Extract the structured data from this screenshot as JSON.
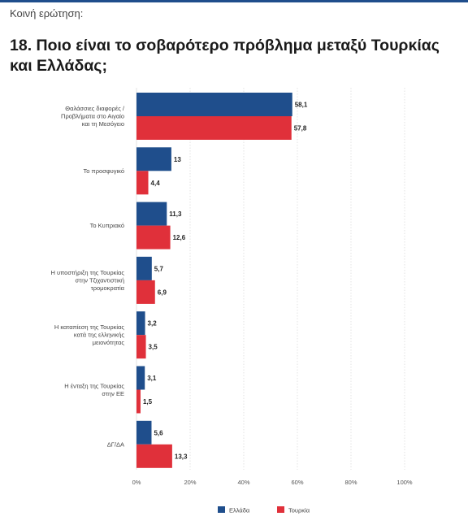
{
  "header": {
    "kicker": "Κοινή ερώτηση:",
    "title": "18. Ποιο είναι το σοβαρότερο πρόβλημα μεταξύ Τουρκίας και Ελλάδας;"
  },
  "colors": {
    "accent": "#1f4e8c",
    "greece": "#1f4e8c",
    "turkey": "#e0303a",
    "grid": "#d0d0d0"
  },
  "chart_data": {
    "type": "bar",
    "orientation": "horizontal",
    "title": "18. Ποιο είναι το σοβαρότερο πρόβλημα μεταξύ Τουρκίας και Ελλάδας;",
    "categories": [
      [
        "Θαλάσσιες διαφορές /",
        "Προβλήματα στο Αιγαίο",
        "και τη Μεσόγειο"
      ],
      [
        "Το προσφυγικό"
      ],
      [
        "Το Κυπριακό"
      ],
      [
        "Η υποστήριξη της Τουρκίας",
        "στην Τζιχαντιστική",
        "τρομοκρατία"
      ],
      [
        "Η καταπίεση της Τουρκίας",
        "κατά της ελληνικής",
        "μειονότητας"
      ],
      [
        "Η ένταξη της Τουρκίας",
        "στην ΕΕ"
      ],
      [
        "ΔΓ/ΔΑ"
      ]
    ],
    "series": [
      {
        "name": "Ελλάδα",
        "color": "#1f4e8c",
        "values": [
          58.1,
          13,
          11.3,
          5.7,
          3.2,
          3.1,
          5.6
        ],
        "labels": [
          "58,1",
          "13",
          "11,3",
          "5,7",
          "3,2",
          "3,1",
          "5,6"
        ]
      },
      {
        "name": "Τουρκία",
        "color": "#e0303a",
        "values": [
          57.8,
          4.4,
          12.6,
          6.9,
          3.5,
          1.5,
          13.3
        ],
        "labels": [
          "57,8",
          "4,4",
          "12,6",
          "6,9",
          "3,5",
          "1,5",
          "13,3"
        ]
      }
    ],
    "xlim": [
      0,
      100
    ],
    "xticks": [
      0,
      20,
      40,
      60,
      80,
      100
    ],
    "xtick_labels": [
      "0%",
      "20%",
      "40%",
      "60%",
      "80%",
      "100%"
    ],
    "grid": true,
    "legend": "bottom-center"
  }
}
